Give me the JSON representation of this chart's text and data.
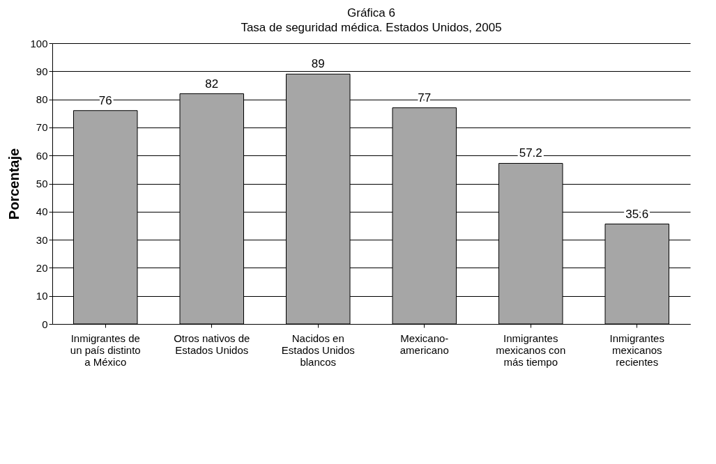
{
  "chart_data": {
    "type": "bar",
    "title": "Gráfica 6",
    "subtitle": "Tasa de seguridad médica. Estados Unidos, 2005",
    "ylabel": "Porcentaje",
    "categories": [
      "Inmigrantes de un país distinto a México",
      "Otros nativos de Estados Unidos",
      "Nacidos en Estados Unidos blancos",
      "Mexicano-americano",
      "Inmigrantes mexicanos con más tiempo",
      "Inmigrantes mexicanos recientes"
    ],
    "values": [
      76,
      82,
      89,
      77,
      57.2,
      35.6
    ],
    "color": "#a6a6a6",
    "ylim": [
      0,
      100
    ],
    "yticks": [
      0,
      10,
      20,
      30,
      40,
      50,
      60,
      70,
      80,
      90,
      100
    ],
    "grid": "y",
    "data_labels": true
  }
}
